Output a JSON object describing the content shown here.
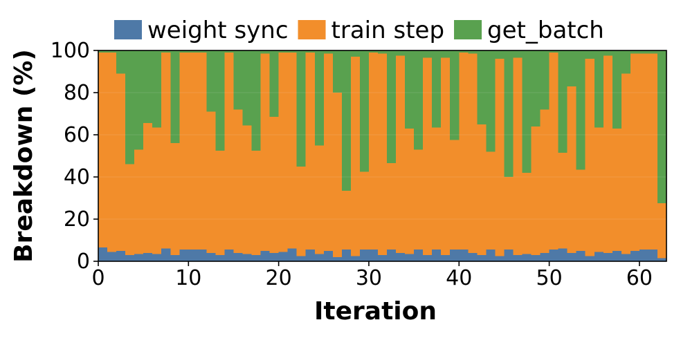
{
  "chart_data": {
    "type": "bar",
    "stacked": true,
    "percent_stacked": true,
    "xlabel": "Iteration",
    "ylabel": "Breakdown (%)",
    "xlim": [
      0,
      63
    ],
    "ylim": [
      0,
      100
    ],
    "xticks": [
      0,
      10,
      20,
      30,
      40,
      50,
      60
    ],
    "yticks": [
      0,
      20,
      40,
      60,
      80,
      100
    ],
    "grid": false,
    "legend_position": "top",
    "x": [
      0,
      1,
      2,
      3,
      4,
      5,
      6,
      7,
      8,
      9,
      10,
      11,
      12,
      13,
      14,
      15,
      16,
      17,
      18,
      19,
      20,
      21,
      22,
      23,
      24,
      25,
      26,
      27,
      28,
      29,
      30,
      31,
      32,
      33,
      34,
      35,
      36,
      37,
      38,
      39,
      40,
      41,
      42,
      43,
      44,
      45,
      46,
      47,
      48,
      49,
      50,
      51,
      52,
      53,
      54,
      55,
      56,
      57,
      58,
      59,
      60,
      61,
      62
    ],
    "series": [
      {
        "name": "weight sync",
        "color": "#4e79a7",
        "values": [
          6.5,
          4.5,
          5,
          3,
          3.5,
          4,
          3.5,
          6,
          3,
          5.5,
          5.5,
          5.5,
          4,
          3,
          5.5,
          4,
          3.5,
          3,
          5,
          4,
          4.5,
          6,
          2.5,
          5.5,
          3.5,
          5,
          2,
          5.5,
          2.5,
          5.5,
          5.5,
          3,
          5.5,
          4,
          3.5,
          5.5,
          3,
          5.5,
          3,
          5.5,
          5.5,
          4,
          3,
          5.5,
          2.5,
          5.5,
          3,
          3.5,
          3,
          4,
          5.5,
          6,
          4,
          5,
          2.5,
          4.5,
          4,
          5,
          3.5,
          5,
          5.5,
          5.5,
          1.5
        ]
      },
      {
        "name": "train step",
        "color": "#f28e2b",
        "values": [
          92.5,
          94.5,
          84,
          43,
          49.5,
          61.5,
          60,
          93,
          53,
          93.5,
          93.5,
          93.5,
          67,
          49.5,
          93.5,
          68,
          61,
          49.5,
          93.5,
          64.5,
          94.5,
          93,
          42.5,
          93.5,
          51.5,
          93.5,
          78,
          28,
          94.5,
          37,
          93.5,
          95.5,
          41,
          93.5,
          59.5,
          47.5,
          93.5,
          58,
          93.5,
          52,
          93.5,
          94.5,
          62,
          46.5,
          93.5,
          34.5,
          93.5,
          38.5,
          61,
          68,
          93.5,
          45.5,
          79,
          38.5,
          93.5,
          59,
          93.5,
          58,
          85.5,
          93.5,
          93,
          93,
          26
        ]
      },
      {
        "name": "get_batch",
        "color": "#59a14f",
        "values": [
          1,
          1,
          11,
          54,
          47,
          34.5,
          36.5,
          1,
          44,
          1,
          1,
          1,
          29,
          47.5,
          1,
          28,
          35.5,
          47.5,
          1.5,
          31.5,
          1,
          1,
          55,
          1,
          45,
          1.5,
          20,
          66.5,
          3,
          57.5,
          1,
          1.5,
          53.5,
          2.5,
          37,
          47,
          3.5,
          36.5,
          3.5,
          42.5,
          1,
          1.5,
          35,
          48,
          4,
          60,
          3.5,
          58,
          36,
          28,
          1,
          48.5,
          17,
          56.5,
          4,
          36.5,
          2.5,
          37,
          11,
          1.5,
          1.5,
          1.5,
          72.5
        ]
      }
    ]
  }
}
